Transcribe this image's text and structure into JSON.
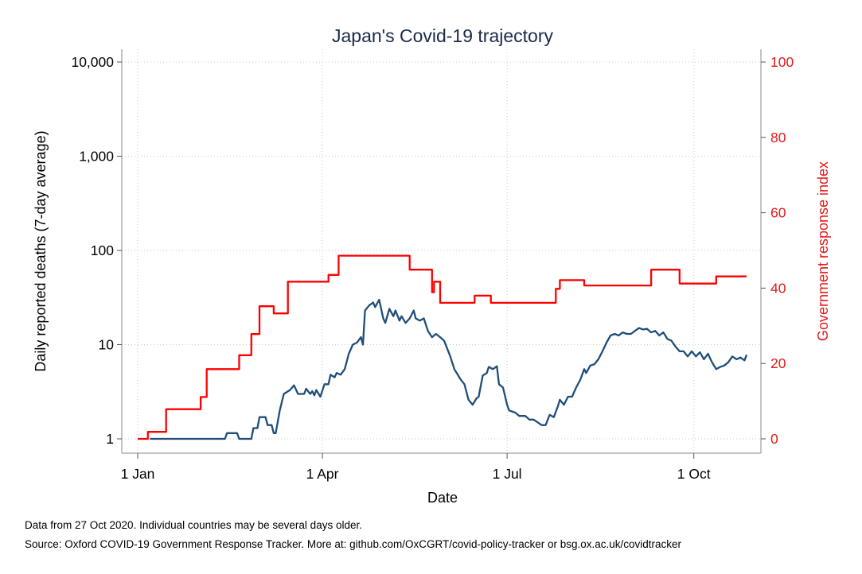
{
  "chart_data": {
    "type": "line",
    "title": "Japan's Covid-19 trajectory",
    "xlabel": "Date",
    "ylabel_left": "Daily reported deaths (7-day average)",
    "ylabel_right": "Government response index",
    "x_ticks": [
      "1 Jan",
      "1 Apr",
      "1 Jul",
      "1 Oct"
    ],
    "x_tick_dates": [
      "2020-01-01",
      "2020-04-01",
      "2020-07-01",
      "2020-10-01"
    ],
    "xlim": [
      "2020-01-01",
      "2020-10-27"
    ],
    "left_axis": {
      "scale": "log",
      "ylim": [
        1,
        10000
      ],
      "ticks": [
        1,
        10,
        100,
        1000,
        10000
      ],
      "tick_labels": [
        "1",
        "10",
        "100",
        "1,000",
        "10,000"
      ]
    },
    "right_axis": {
      "scale": "linear",
      "ylim": [
        0,
        100
      ],
      "ticks": [
        0,
        20,
        40,
        60,
        80,
        100
      ],
      "tick_labels": [
        "0",
        "20",
        "40",
        "60",
        "80",
        "100"
      ]
    },
    "grid": true,
    "colors": {
      "deaths": "#1f4e79",
      "response": "#ff0000",
      "right_axis": "#e31a1c",
      "text": "#1a2a4a"
    },
    "series": [
      {
        "axis": "left",
        "color": "#1f4e79",
        "points": [
          [
            "2020-01-07",
            1
          ],
          [
            "2020-02-13",
            1
          ],
          [
            "2020-02-14",
            1.15
          ],
          [
            "2020-02-19",
            1.15
          ],
          [
            "2020-02-20",
            1
          ],
          [
            "2020-02-26",
            1
          ],
          [
            "2020-02-27",
            1.3
          ],
          [
            "2020-02-29",
            1.3
          ],
          [
            "2020-03-01",
            1.7
          ],
          [
            "2020-03-04",
            1.7
          ],
          [
            "2020-03-05",
            1.4
          ],
          [
            "2020-03-07",
            1.4
          ],
          [
            "2020-03-08",
            1.15
          ],
          [
            "2020-03-09",
            1.15
          ],
          [
            "2020-03-11",
            2
          ],
          [
            "2020-03-13",
            3
          ],
          [
            "2020-03-16",
            3.3
          ],
          [
            "2020-03-18",
            3.7
          ],
          [
            "2020-03-20",
            3
          ],
          [
            "2020-03-23",
            3
          ],
          [
            "2020-03-24",
            3.4
          ],
          [
            "2020-03-26",
            3
          ],
          [
            "2020-03-27",
            3.2
          ],
          [
            "2020-03-28",
            2.9
          ],
          [
            "2020-03-29",
            3.3
          ],
          [
            "2020-03-31",
            2.8
          ],
          [
            "2020-04-02",
            3.8
          ],
          [
            "2020-04-04",
            3.8
          ],
          [
            "2020-04-05",
            4.8
          ],
          [
            "2020-04-07",
            4.5
          ],
          [
            "2020-04-08",
            5
          ],
          [
            "2020-04-10",
            4.8
          ],
          [
            "2020-04-12",
            5.5
          ],
          [
            "2020-04-14",
            8
          ],
          [
            "2020-04-16",
            10
          ],
          [
            "2020-04-18",
            10.5
          ],
          [
            "2020-04-20",
            12
          ],
          [
            "2020-04-21",
            10
          ],
          [
            "2020-04-22",
            23
          ],
          [
            "2020-04-24",
            26
          ],
          [
            "2020-04-26",
            28
          ],
          [
            "2020-04-27",
            25
          ],
          [
            "2020-04-29",
            30
          ],
          [
            "2020-05-01",
            19
          ],
          [
            "2020-05-02",
            17
          ],
          [
            "2020-05-04",
            24
          ],
          [
            "2020-05-06",
            20
          ],
          [
            "2020-05-07",
            23
          ],
          [
            "2020-05-09",
            18
          ],
          [
            "2020-05-10",
            20
          ],
          [
            "2020-05-12",
            17
          ],
          [
            "2020-05-14",
            19
          ],
          [
            "2020-05-16",
            23
          ],
          [
            "2020-05-17",
            19
          ],
          [
            "2020-05-19",
            18
          ],
          [
            "2020-05-21",
            19
          ],
          [
            "2020-05-23",
            14
          ],
          [
            "2020-05-25",
            12
          ],
          [
            "2020-05-27",
            13
          ],
          [
            "2020-05-29",
            12
          ],
          [
            "2020-05-31",
            11
          ],
          [
            "2020-06-03",
            7.5
          ],
          [
            "2020-06-05",
            5.5
          ],
          [
            "2020-06-08",
            4.3
          ],
          [
            "2020-06-10",
            3.8
          ],
          [
            "2020-06-12",
            2.6
          ],
          [
            "2020-06-14",
            2.3
          ],
          [
            "2020-06-16",
            2.7
          ],
          [
            "2020-06-17",
            2.8
          ],
          [
            "2020-06-19",
            4.7
          ],
          [
            "2020-06-21",
            5
          ],
          [
            "2020-06-22",
            5.8
          ],
          [
            "2020-06-24",
            5.5
          ],
          [
            "2020-06-26",
            5.9
          ],
          [
            "2020-06-27",
            3.8
          ],
          [
            "2020-06-29",
            3.5
          ],
          [
            "2020-07-01",
            2.3
          ],
          [
            "2020-07-02",
            2
          ],
          [
            "2020-07-05",
            1.9
          ],
          [
            "2020-07-07",
            1.75
          ],
          [
            "2020-07-10",
            1.75
          ],
          [
            "2020-07-12",
            1.6
          ],
          [
            "2020-07-14",
            1.6
          ],
          [
            "2020-07-16",
            1.5
          ],
          [
            "2020-07-18",
            1.4
          ],
          [
            "2020-07-20",
            1.4
          ],
          [
            "2020-07-22",
            1.8
          ],
          [
            "2020-07-24",
            1.7
          ],
          [
            "2020-07-26",
            2.2
          ],
          [
            "2020-07-27",
            2.6
          ],
          [
            "2020-07-29",
            2.3
          ],
          [
            "2020-07-31",
            2.8
          ],
          [
            "2020-08-02",
            2.8
          ],
          [
            "2020-08-04",
            3.5
          ],
          [
            "2020-08-06",
            4.2
          ],
          [
            "2020-08-08",
            5.5
          ],
          [
            "2020-08-09",
            5
          ],
          [
            "2020-08-11",
            6
          ],
          [
            "2020-08-13",
            6.2
          ],
          [
            "2020-08-15",
            7
          ],
          [
            "2020-08-17",
            8.5
          ],
          [
            "2020-08-19",
            10.5
          ],
          [
            "2020-08-21",
            12.5
          ],
          [
            "2020-08-23",
            13
          ],
          [
            "2020-08-25",
            12.5
          ],
          [
            "2020-08-27",
            13.5
          ],
          [
            "2020-08-29",
            13
          ],
          [
            "2020-08-31",
            13
          ],
          [
            "2020-09-02",
            14
          ],
          [
            "2020-09-04",
            15
          ],
          [
            "2020-09-06",
            14.5
          ],
          [
            "2020-09-08",
            14.7
          ],
          [
            "2020-09-10",
            13.5
          ],
          [
            "2020-09-12",
            14
          ],
          [
            "2020-09-14",
            12.5
          ],
          [
            "2020-09-16",
            13.5
          ],
          [
            "2020-09-18",
            11.5
          ],
          [
            "2020-09-20",
            11
          ],
          [
            "2020-09-22",
            9.5
          ],
          [
            "2020-09-24",
            8.5
          ],
          [
            "2020-09-26",
            8.5
          ],
          [
            "2020-09-28",
            7.5
          ],
          [
            "2020-09-30",
            8.5
          ],
          [
            "2020-10-02",
            7.5
          ],
          [
            "2020-10-04",
            8.3
          ],
          [
            "2020-10-06",
            7
          ],
          [
            "2020-10-08",
            8
          ],
          [
            "2020-10-10",
            6.5
          ],
          [
            "2020-10-12",
            5.5
          ],
          [
            "2020-10-14",
            5.8
          ],
          [
            "2020-10-16",
            6
          ],
          [
            "2020-10-18",
            6.5
          ],
          [
            "2020-10-20",
            7.5
          ],
          [
            "2020-10-22",
            7
          ],
          [
            "2020-10-24",
            7.3
          ],
          [
            "2020-10-26",
            6.8
          ],
          [
            "2020-10-27",
            7.8
          ]
        ]
      },
      {
        "axis": "right",
        "step": true,
        "color": "#ff0000",
        "points": [
          [
            "2020-01-01",
            0
          ],
          [
            "2020-01-06",
            1.85
          ],
          [
            "2020-01-15",
            7.87
          ],
          [
            "2020-02-01",
            11.1
          ],
          [
            "2020-02-04",
            18.5
          ],
          [
            "2020-02-20",
            22.2
          ],
          [
            "2020-02-26",
            27.8
          ],
          [
            "2020-03-01",
            35.2
          ],
          [
            "2020-03-08",
            33.3
          ],
          [
            "2020-03-15",
            41.7
          ],
          [
            "2020-04-04",
            43.5
          ],
          [
            "2020-04-09",
            48.6
          ],
          [
            "2020-05-14",
            44.9
          ],
          [
            "2020-05-25",
            38.9
          ],
          [
            "2020-05-26",
            41.7
          ],
          [
            "2020-05-29",
            36.1
          ],
          [
            "2020-06-15",
            38.0
          ],
          [
            "2020-06-23",
            36.1
          ],
          [
            "2020-07-25",
            39.8
          ],
          [
            "2020-07-27",
            42.1
          ],
          [
            "2020-08-08",
            40.7
          ],
          [
            "2020-09-10",
            44.9
          ],
          [
            "2020-09-24",
            41.2
          ],
          [
            "2020-10-12",
            43.1
          ],
          [
            "2020-10-27",
            43.1
          ]
        ]
      }
    ]
  },
  "footnotes": {
    "line1": "Data from 27 Oct 2020. Individual countries may be several days older.",
    "line2": "Source: Oxford COVID-19 Government Response Tracker. More at: github.com/OxCGRT/covid-policy-tracker or bsg.ox.ac.uk/covidtracker"
  }
}
